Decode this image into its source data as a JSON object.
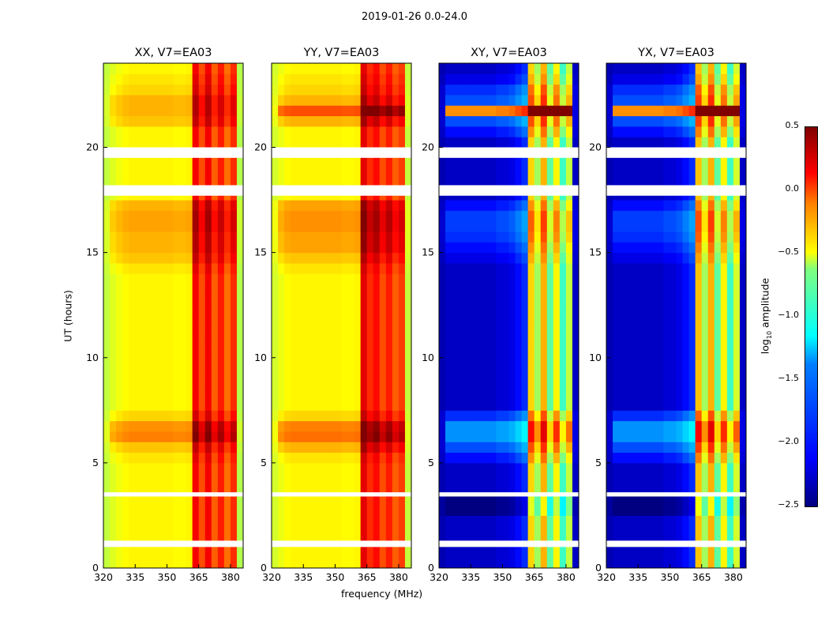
{
  "chart_data": {
    "type": "heatmap",
    "title": "2019-01-26 0.0-24.0",
    "xlabel": "frequency (MHz)",
    "ylabel": "UT (hours)",
    "xlim": [
      320,
      386
    ],
    "ylim": [
      0,
      24
    ],
    "xticks": [
      320,
      335,
      350,
      365,
      380
    ],
    "yticks": [
      0,
      5,
      10,
      15,
      20
    ],
    "freq_bin_edges_mhz": [
      320,
      323,
      326,
      329,
      332,
      335,
      338,
      341,
      344,
      347,
      350,
      353,
      356,
      359,
      362,
      365,
      368,
      371,
      374,
      377,
      380,
      383,
      386
    ],
    "time_bin_hours": 0.5,
    "flagged_time_ranges_hours": [
      [
        1.0,
        1.3
      ],
      [
        3.4,
        3.6
      ],
      [
        17.7,
        18.2
      ],
      [
        19.5,
        20.0
      ]
    ],
    "colorbar": {
      "label": "log10 amplitude",
      "label_base": "log",
      "label_sub": "10",
      "label_rest": " amplitude",
      "range": [
        -2.5,
        0.5
      ],
      "ticks": [
        "0.5",
        "0.0",
        "−0.5",
        "−1.0",
        "−1.5",
        "−2.0",
        "−2.5"
      ],
      "tick_values": [
        0.5,
        0.0,
        -0.5,
        -1.0,
        -1.5,
        -2.0,
        -2.5
      ],
      "colormap": "jet"
    },
    "panels": [
      {
        "title": "XX, V7=EA03",
        "freq_profile": [
          -0.8,
          -0.72,
          -0.66,
          -0.62,
          -0.6,
          -0.6,
          -0.6,
          -0.6,
          -0.6,
          -0.6,
          -0.6,
          -0.62,
          -0.62,
          -0.6,
          0.15,
          -0.1,
          0.15,
          -0.15,
          0.05,
          -0.2,
          0.0,
          -0.85
        ],
        "time_offsets": [
          0,
          0,
          0,
          0,
          0,
          0,
          0,
          0,
          0,
          0,
          0.05,
          0.15,
          0.35,
          0.3,
          0.1,
          0,
          0,
          0,
          0,
          0,
          0,
          0,
          0,
          0,
          0,
          0,
          0,
          0,
          0.05,
          0.15,
          0.2,
          0.2,
          0.25,
          0.25,
          0.2,
          0,
          0,
          0,
          0,
          0,
          0,
          0,
          0.15,
          0.2,
          0.2,
          0.1,
          0.05,
          0
        ]
      },
      {
        "title": "YY, V7=EA03",
        "freq_profile": [
          -0.75,
          -0.68,
          -0.62,
          -0.6,
          -0.6,
          -0.6,
          -0.6,
          -0.6,
          -0.6,
          -0.6,
          -0.6,
          -0.62,
          -0.62,
          -0.6,
          0.2,
          0.0,
          0.1,
          -0.1,
          0.05,
          -0.15,
          -0.05,
          -0.8
        ],
        "time_offsets": [
          0,
          0,
          0,
          0,
          0,
          0,
          0,
          0,
          0,
          0,
          0.05,
          0.2,
          0.4,
          0.35,
          0.1,
          0,
          0,
          0,
          0,
          0,
          0,
          0,
          0,
          0,
          0,
          0,
          0,
          0,
          0.05,
          0.15,
          0.25,
          0.25,
          0.3,
          0.3,
          0.25,
          0,
          0,
          0,
          0,
          0,
          0,
          0,
          0.2,
          0.5,
          0.2,
          0.1,
          0.05,
          0
        ]
      },
      {
        "title": "XY, V7=EA03",
        "freq_profile": [
          -2.35,
          -2.3,
          -2.3,
          -2.3,
          -2.3,
          -2.3,
          -2.3,
          -2.3,
          -2.3,
          -2.25,
          -2.25,
          -2.2,
          -2.1,
          -2.0,
          -0.5,
          -0.9,
          -0.4,
          -1.1,
          -0.6,
          -1.2,
          -0.8,
          -2.3
        ],
        "time_offsets": [
          0,
          0,
          0,
          0,
          0,
          -0.2,
          -0.2,
          0,
          0,
          0,
          0.2,
          0.4,
          0.6,
          0.6,
          0.3,
          0,
          0,
          0,
          0,
          0,
          0,
          0,
          0,
          0,
          0,
          0,
          0,
          0,
          0,
          0.1,
          0.2,
          0.3,
          0.35,
          0.35,
          0.2,
          0,
          0,
          0,
          0,
          0,
          0,
          0.2,
          0.4,
          2.0,
          0.4,
          0.3,
          0.1,
          0
        ]
      },
      {
        "title": "YX, V7=EA03",
        "freq_profile": [
          -2.35,
          -2.3,
          -2.3,
          -2.3,
          -2.3,
          -2.3,
          -2.3,
          -2.3,
          -2.3,
          -2.25,
          -2.25,
          -2.2,
          -2.1,
          -2.0,
          -0.45,
          -0.9,
          -0.4,
          -1.1,
          -0.6,
          -1.2,
          -0.75,
          -2.3
        ],
        "time_offsets": [
          0,
          0,
          0,
          0,
          0,
          -0.2,
          -0.2,
          0,
          0,
          0,
          0.2,
          0.4,
          0.6,
          0.6,
          0.3,
          0,
          0,
          0,
          0,
          0,
          0,
          0,
          0,
          0,
          0,
          0,
          0,
          0,
          0,
          0.1,
          0.2,
          0.3,
          0.35,
          0.35,
          0.2,
          0,
          0,
          0,
          0,
          0,
          0,
          0.2,
          0.4,
          2.0,
          0.4,
          0.3,
          0.1,
          0
        ]
      }
    ]
  }
}
